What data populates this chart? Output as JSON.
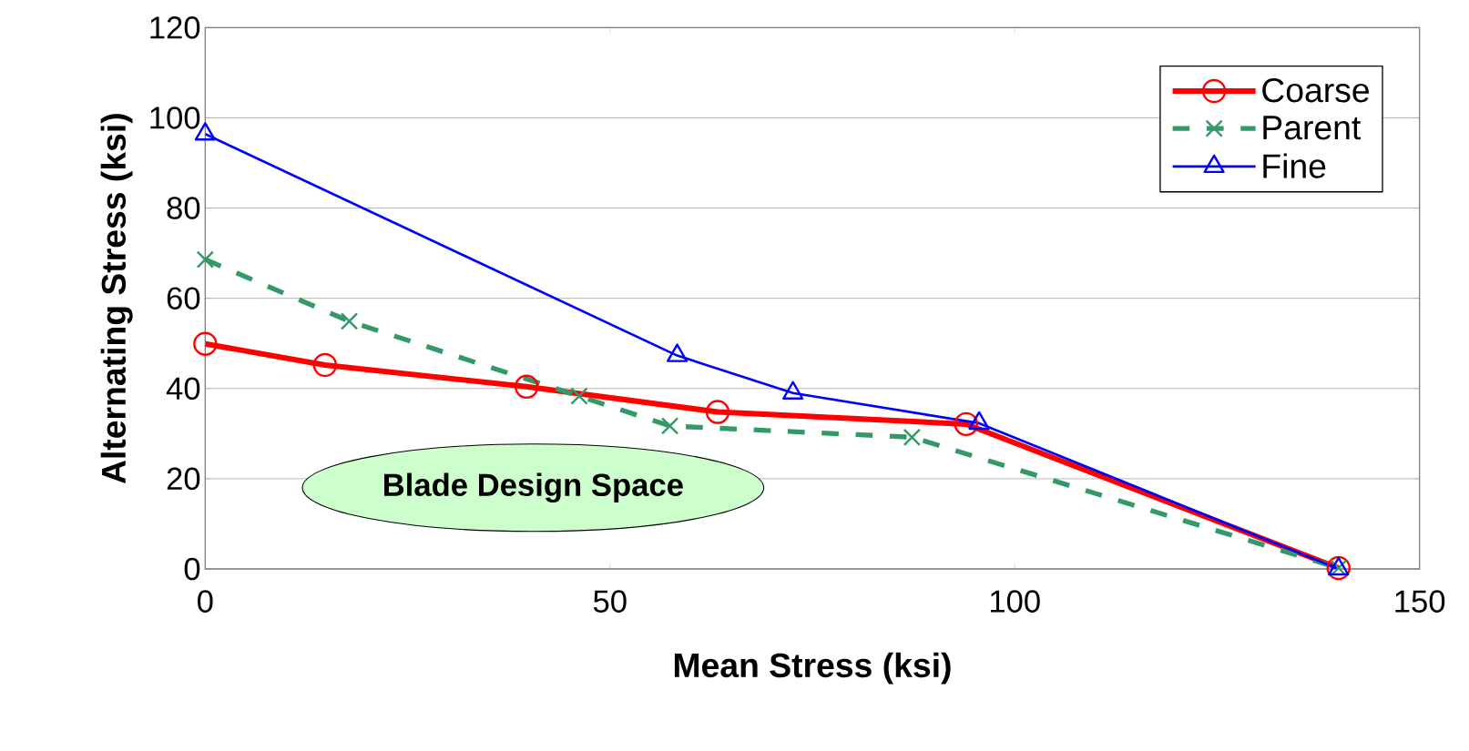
{
  "chart_data": {
    "type": "line",
    "xlabel": "Mean Stress (ksi)",
    "ylabel": "Alternating Stress (ksi)",
    "xlim": [
      0,
      150
    ],
    "ylim": [
      0,
      120
    ],
    "xticks": [
      0,
      50,
      100,
      150
    ],
    "yticks": [
      0,
      20,
      40,
      60,
      80,
      100,
      120
    ],
    "grid": "y",
    "legend": "top right",
    "series": [
      {
        "name": "Coarse",
        "color": "#ff0000",
        "marker": "circle",
        "line_style": "solid",
        "x": [
          0,
          14.8,
          39.7,
          63.3,
          94,
          140
        ],
        "values": [
          49.9,
          45.2,
          40.4,
          34.8,
          32.1,
          0.2
        ]
      },
      {
        "name": "Parent",
        "color": "#339966",
        "marker": "cross",
        "line_style": "dashed",
        "x": [
          0,
          17.8,
          46.2,
          57.4,
          87.3,
          140
        ],
        "values": [
          68.6,
          54.9,
          38.3,
          31.7,
          29.2,
          0.2
        ]
      },
      {
        "name": "Fine",
        "color": "#0000ff",
        "marker": "triangle",
        "line_style": "solid",
        "x": [
          0,
          58.3,
          72.6,
          95.6,
          140
        ],
        "values": [
          96.4,
          47.3,
          39,
          32.3,
          0
        ]
      }
    ],
    "annotations": [
      "Blade Design Space"
    ]
  }
}
